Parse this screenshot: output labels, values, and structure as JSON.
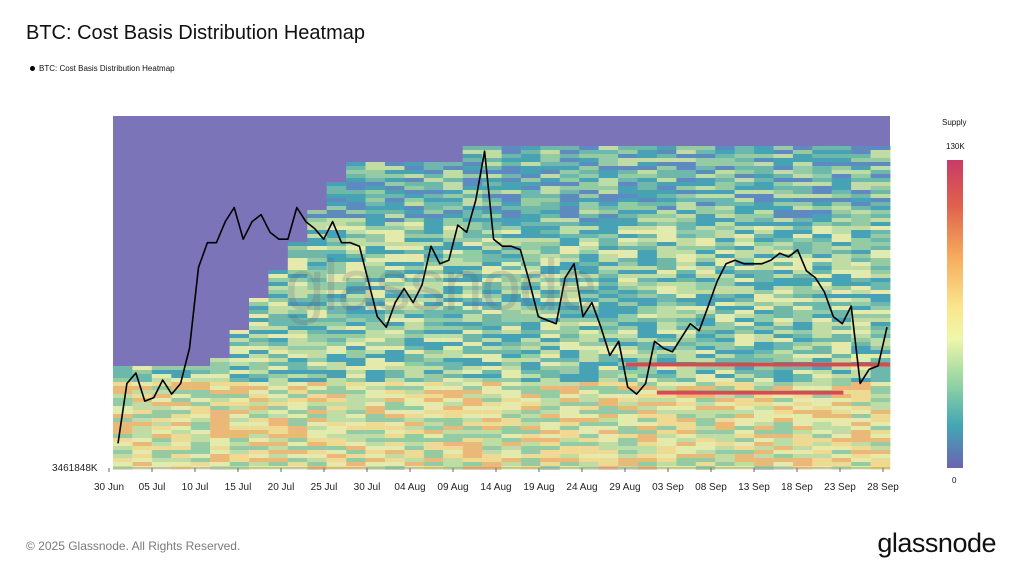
{
  "title": "BTC: Cost Basis Distribution Heatmap",
  "legend_label": "BTC: Cost Basis Distribution Heatmap",
  "footer": "© 2025 Glassnode. All Rights Reserved.",
  "brand": "glassnode",
  "watermark": "glassnode",
  "colorbar": {
    "title": "Supply",
    "max_label": "130K",
    "min_label": "0"
  },
  "colors": {
    "line": "#000000",
    "background_band": "#7b74b8"
  },
  "chart_data": {
    "type": "heatmap",
    "title": "BTC: Cost Basis Distribution Heatmap",
    "y_min_label": "3461848K",
    "x_tick_labels": [
      "30 Jun",
      "05 Jul",
      "10 Jul",
      "15 Jul",
      "20 Jul",
      "25 Jul",
      "30 Jul",
      "04 Aug",
      "09 Aug",
      "14 Aug",
      "19 Aug",
      "24 Aug",
      "29 Aug",
      "03 Sep",
      "08 Sep",
      "13 Sep",
      "18 Sep",
      "23 Sep",
      "28 Sep"
    ],
    "series": [
      {
        "name": "BTC: Cost Basis Distribution Heatmap",
        "type": "line",
        "values": [
          0.07,
          0.24,
          0.27,
          0.19,
          0.2,
          0.25,
          0.21,
          0.24,
          0.34,
          0.57,
          0.64,
          0.64,
          0.7,
          0.74,
          0.65,
          0.7,
          0.72,
          0.67,
          0.65,
          0.65,
          0.74,
          0.7,
          0.68,
          0.65,
          0.7,
          0.64,
          0.64,
          0.63,
          0.53,
          0.43,
          0.4,
          0.47,
          0.51,
          0.47,
          0.52,
          0.63,
          0.58,
          0.59,
          0.69,
          0.67,
          0.76,
          0.9,
          0.65,
          0.63,
          0.63,
          0.62,
          0.53,
          0.43,
          0.42,
          0.41,
          0.54,
          0.58,
          0.43,
          0.47,
          0.4,
          0.32,
          0.36,
          0.23,
          0.21,
          0.24,
          0.36,
          0.34,
          0.33,
          0.37,
          0.41,
          0.39,
          0.46,
          0.53,
          0.58,
          0.59,
          0.58,
          0.58,
          0.58,
          0.59,
          0.61,
          0.6,
          0.62,
          0.56,
          0.54,
          0.5,
          0.43,
          0.41,
          0.46,
          0.24,
          0.28,
          0.29,
          0.4
        ]
      }
    ],
    "colorscale": {
      "min": 0,
      "max": 130000,
      "unit": "BTC supply"
    },
    "grid": false,
    "legend_position": "top-left"
  }
}
